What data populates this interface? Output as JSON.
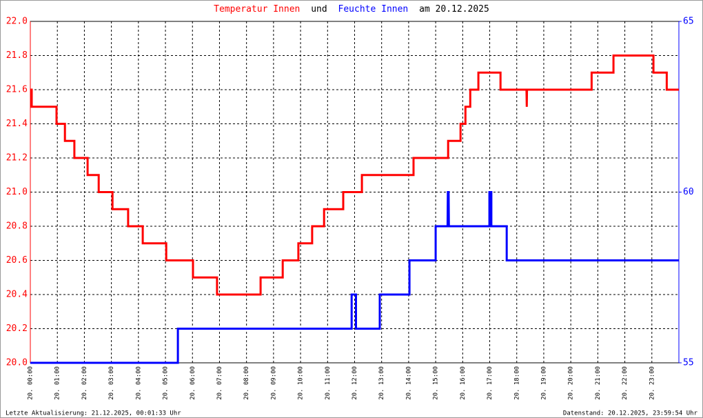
{
  "chart_data": {
    "type": "line",
    "title": [
      {
        "text": "Temperatur Innen",
        "color": "#ff0000"
      },
      {
        "text": "und",
        "color": "#000000"
      },
      {
        "text": "Feuchte Innen",
        "color": "#0000ff"
      },
      {
        "text": "am 20.12.2025",
        "color": "#000000"
      }
    ],
    "footer_left": "Letzte Aktualisierung: 21.12.2025, 00:01:33 Uhr",
    "footer_right": "Datenstand: 20.12.2025, 23:59:54 Uhr",
    "xlim": [
      0,
      24
    ],
    "xticks": [
      {
        "value": 0,
        "label": "20. 00:00"
      },
      {
        "value": 1,
        "label": "20. 01:00"
      },
      {
        "value": 2,
        "label": "20. 02:00"
      },
      {
        "value": 3,
        "label": "20. 03:00"
      },
      {
        "value": 4,
        "label": "20. 04:00"
      },
      {
        "value": 5,
        "label": "20. 05:00"
      },
      {
        "value": 6,
        "label": "20. 06:00"
      },
      {
        "value": 7,
        "label": "20. 07:00"
      },
      {
        "value": 8,
        "label": "20. 08:00"
      },
      {
        "value": 9,
        "label": "20. 09:00"
      },
      {
        "value": 10,
        "label": "20. 10:00"
      },
      {
        "value": 11,
        "label": "20. 11:00"
      },
      {
        "value": 12,
        "label": "20. 12:00"
      },
      {
        "value": 13,
        "label": "20. 13:00"
      },
      {
        "value": 14,
        "label": "20. 14:00"
      },
      {
        "value": 15,
        "label": "20. 15:00"
      },
      {
        "value": 16,
        "label": "20. 16:00"
      },
      {
        "value": 17,
        "label": "20. 17:00"
      },
      {
        "value": 18,
        "label": "20. 18:00"
      },
      {
        "value": 19,
        "label": "20. 19:00"
      },
      {
        "value": 20,
        "label": "20. 20:00"
      },
      {
        "value": 21,
        "label": "20. 21:00"
      },
      {
        "value": 22,
        "label": "20. 22:00"
      },
      {
        "value": 23,
        "label": "20. 23:00"
      }
    ],
    "ylim": [
      20.0,
      22.0
    ],
    "yticks": [
      {
        "value": 20.0,
        "label": "20.0"
      },
      20.2,
      20.4,
      20.6,
      20.8,
      {
        "value": 21.0,
        "label": "21.0"
      },
      21.2,
      21.4,
      21.6,
      21.8,
      {
        "value": 22.0,
        "label": "22.0"
      }
    ],
    "y2lim": [
      55,
      65
    ],
    "y2ticks": [
      55,
      60,
      65
    ],
    "grid": true,
    "series": [
      {
        "name": "Temperatur Innen",
        "color": "#ff0000",
        "axis": "y",
        "x": [
          0,
          0.05,
          0.05,
          0.97,
          0.97,
          1.28,
          1.28,
          1.63,
          1.63,
          2.12,
          2.12,
          2.53,
          2.53,
          3.04,
          3.04,
          3.62,
          3.62,
          4.16,
          4.16,
          5.03,
          5.03,
          6.02,
          6.02,
          6.91,
          6.91,
          8.52,
          8.52,
          9.34,
          9.34,
          9.92,
          9.92,
          10.43,
          10.43,
          10.87,
          10.87,
          11.58,
          11.58,
          12.27,
          12.27,
          14.18,
          14.18,
          15.46,
          15.46,
          15.92,
          15.92,
          16.1,
          16.1,
          16.28,
          16.28,
          16.58,
          16.58,
          17.4,
          17.4,
          18.36,
          18.37,
          18.38,
          20.77,
          20.77,
          21.58,
          21.58,
          23.06,
          23.06,
          23.55,
          23.55,
          24
        ],
        "values": [
          21.6,
          21.6,
          21.5,
          21.5,
          21.4,
          21.4,
          21.3,
          21.3,
          21.2,
          21.2,
          21.1,
          21.1,
          21.0,
          21.0,
          20.9,
          20.9,
          20.8,
          20.8,
          20.7,
          20.7,
          20.6,
          20.6,
          20.5,
          20.5,
          20.4,
          20.4,
          20.5,
          20.5,
          20.6,
          20.6,
          20.7,
          20.7,
          20.8,
          20.8,
          20.9,
          20.9,
          21.0,
          21.0,
          21.1,
          21.1,
          21.2,
          21.2,
          21.3,
          21.3,
          21.4,
          21.4,
          21.5,
          21.5,
          21.6,
          21.6,
          21.7,
          21.7,
          21.6,
          21.6,
          21.5,
          21.6,
          21.6,
          21.7,
          21.7,
          21.8,
          21.8,
          21.7,
          21.7,
          21.6,
          21.6
        ]
      },
      {
        "name": "Feuchte Innen",
        "color": "#0000ff",
        "axis": "y2",
        "x": [
          0,
          5.46,
          5.46,
          11.89,
          11.89,
          12.05,
          12.05,
          12.93,
          12.93,
          14.03,
          14.03,
          15.0,
          15.0,
          15.44,
          15.45,
          15.48,
          15.49,
          16.99,
          16.99,
          17.06,
          17.06,
          17.63,
          17.63,
          24
        ],
        "values": [
          55,
          55,
          56,
          56,
          57,
          57,
          56,
          56,
          57,
          57,
          58,
          58,
          59,
          59,
          60,
          60,
          59,
          59,
          60,
          60,
          59,
          59,
          58,
          58
        ]
      }
    ]
  }
}
